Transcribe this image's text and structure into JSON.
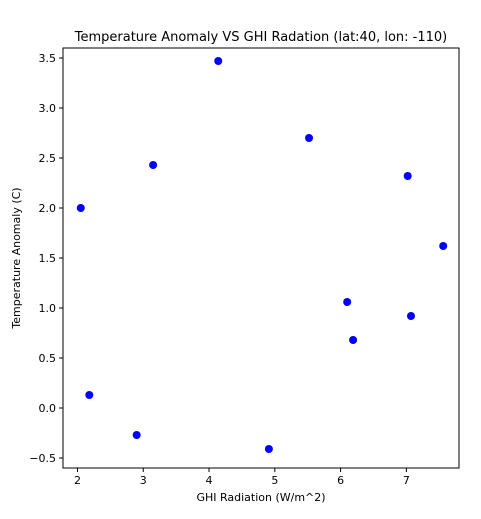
{
  "chart_data": {
    "type": "scatter",
    "title": "Temperature Anomaly VS GHI Radation (lat:40, lon: -110)",
    "xlabel": "GHI Radiation (W/m^2)",
    "ylabel": "Temperature Anomaly (C)",
    "xlim": [
      1.78,
      7.8
    ],
    "ylim": [
      -0.6,
      3.6
    ],
    "x_ticks": [
      2,
      3,
      4,
      5,
      6,
      7
    ],
    "x_tick_labels": [
      "2",
      "3",
      "4",
      "5",
      "6",
      "7"
    ],
    "y_ticks": [
      -0.5,
      0.0,
      0.5,
      1.0,
      1.5,
      2.0,
      2.5,
      3.0,
      3.5
    ],
    "y_tick_labels": [
      "−0.5",
      "0.0",
      "0.5",
      "1.0",
      "1.5",
      "2.0",
      "2.5",
      "3.0",
      "3.5"
    ],
    "grid": false,
    "marker_color": "#0000ff",
    "points": [
      {
        "x": 2.05,
        "y": 2.0
      },
      {
        "x": 2.18,
        "y": 0.13
      },
      {
        "x": 2.9,
        "y": -0.27
      },
      {
        "x": 3.15,
        "y": 2.43
      },
      {
        "x": 4.14,
        "y": 3.47
      },
      {
        "x": 4.91,
        "y": -0.41
      },
      {
        "x": 5.52,
        "y": 2.7
      },
      {
        "x": 6.1,
        "y": 1.06
      },
      {
        "x": 6.19,
        "y": 0.68
      },
      {
        "x": 7.02,
        "y": 2.32
      },
      {
        "x": 7.07,
        "y": 0.92
      },
      {
        "x": 7.56,
        "y": 1.62
      }
    ]
  }
}
